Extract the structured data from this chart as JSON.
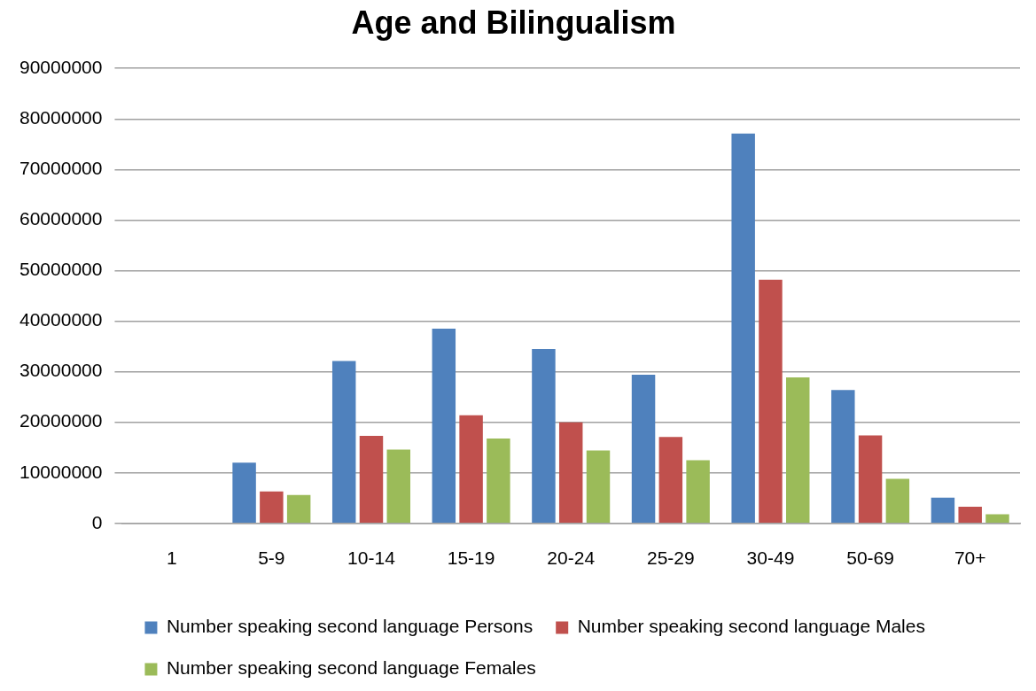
{
  "chart_data": {
    "type": "bar",
    "title": "Age and Bilingualism",
    "categories": [
      "1",
      "5-9",
      "10-14",
      "15-19",
      "20-24",
      "25-29",
      "30-49",
      "50-69",
      "70+"
    ],
    "series": [
      {
        "name": "Number speaking second language Persons",
        "color": "#4f81bd",
        "values": [
          0,
          12000000,
          32100000,
          38500000,
          34500000,
          29400000,
          77100000,
          26400000,
          5100000
        ]
      },
      {
        "name": "Number speaking second language Males",
        "color": "#c0504d",
        "values": [
          0,
          6300000,
          17300000,
          21400000,
          20000000,
          17100000,
          48200000,
          17400000,
          3300000
        ]
      },
      {
        "name": "Number speaking second language Females",
        "color": "#9bbb59",
        "values": [
          0,
          5600000,
          14600000,
          16800000,
          14400000,
          12500000,
          28900000,
          8800000,
          1800000
        ]
      }
    ],
    "ylim": [
      0,
      90000000
    ],
    "yticks": [
      0,
      10000000,
      20000000,
      30000000,
      40000000,
      50000000,
      60000000,
      70000000,
      80000000,
      90000000
    ],
    "grid": "y",
    "legend": "bottom"
  }
}
